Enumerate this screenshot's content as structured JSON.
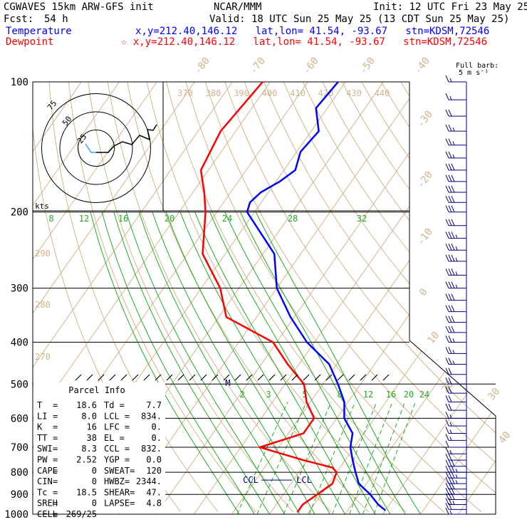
{
  "header": {
    "left1": "CGWAVES 15km ARW-GFS init",
    "center1": "NCAR/MMM",
    "right1": "Init: 12 UTC Fri 23 May 25",
    "fcst_label": "Fcst:",
    "fcst_value": "54 h",
    "valid": "Valid: 18 UTC Sun 25 May 25 (13 CDT Sun 25 May 25)",
    "temp_label": "Temperature",
    "temp_loc": "x,y=212.40,146.12   lat,lon= 41.54, -93.67   stn=KDSM,72546",
    "dew_label": "Dewpoint",
    "dew_loc": "☆ x,y=212.40,146.12   lat,lon= 41.54, -93.67   stn=KDSM,72546",
    "barb_note_1": "Full barb:",
    "barb_note_2": "5 m s⁻¹"
  },
  "colors": {
    "temperature": "#0000ff",
    "dewpoint": "#ff0000",
    "isotherm": "#d2b48c",
    "dry_adiabat": "#d2b48c",
    "moist_adiabat": "#22aa22",
    "mixing_ratio": "#22aa22",
    "isobar": "#000000",
    "barb": "#000080",
    "hodo_trace": "#000000",
    "hodo_low": "#33aadd"
  },
  "chart_data": {
    "type": "line",
    "diagram": "skew-T log-p",
    "y_axis": {
      "pressure_labels": [
        "100",
        "200",
        "300",
        "400",
        "500",
        "600",
        "700",
        "800",
        "900",
        "1000"
      ],
      "pressure_values": [
        100,
        200,
        300,
        400,
        500,
        600,
        700,
        800,
        900,
        1000
      ],
      "scale": "log"
    },
    "isotherm_labels": [
      "-80",
      "-70",
      "-60",
      "-50",
      "-40",
      "-30",
      "-20",
      "-10",
      "0",
      "10",
      "20",
      "30",
      "40"
    ],
    "isotherm_values": [
      -80,
      -70,
      -60,
      -50,
      -40,
      -30,
      -20,
      -10,
      0,
      10,
      20,
      30,
      40
    ],
    "theta_labels_top": [
      "370",
      "380",
      "390",
      "400",
      "410",
      "420",
      "430",
      "440"
    ],
    "theta_labels_left": [
      "290",
      "280",
      "270"
    ],
    "moist_labels_200": [
      "8",
      "12",
      "16",
      "20",
      "24",
      "28",
      "32"
    ],
    "mixing_ratio_labels": [
      "2",
      "3",
      "5",
      "8",
      "12",
      "16",
      "20",
      "24"
    ],
    "series": [
      {
        "name": "Temperature",
        "points": [
          [
            100,
            -62
          ],
          [
            115,
            -63
          ],
          [
            130,
            -58
          ],
          [
            145,
            -59
          ],
          [
            160,
            -57
          ],
          [
            170,
            -59
          ],
          [
            180,
            -62
          ],
          [
            190,
            -63
          ],
          [
            200,
            -62
          ],
          [
            250,
            -47
          ],
          [
            300,
            -40
          ],
          [
            350,
            -31
          ],
          [
            400,
            -22
          ],
          [
            450,
            -12
          ],
          [
            500,
            -6
          ],
          [
            550,
            -1
          ],
          [
            600,
            2
          ],
          [
            650,
            7
          ],
          [
            700,
            9
          ],
          [
            750,
            12
          ],
          [
            800,
            15
          ],
          [
            850,
            18
          ],
          [
            900,
            23
          ],
          [
            950,
            27
          ],
          [
            980,
            30
          ]
        ]
      },
      {
        "name": "Dewpoint",
        "points": [
          [
            100,
            -82
          ],
          [
            130,
            -84
          ],
          [
            160,
            -82
          ],
          [
            180,
            -77
          ],
          [
            200,
            -73
          ],
          [
            250,
            -66
          ],
          [
            300,
            -55
          ],
          [
            350,
            -48
          ],
          [
            400,
            -31
          ],
          [
            450,
            -23
          ],
          [
            500,
            -15
          ],
          [
            550,
            -11
          ],
          [
            600,
            -6
          ],
          [
            650,
            -6
          ],
          [
            700,
            -15
          ],
          [
            750,
            -1
          ],
          [
            780,
            8
          ],
          [
            800,
            10
          ],
          [
            850,
            11
          ],
          [
            900,
            9
          ],
          [
            950,
            7
          ],
          [
            990,
            7
          ]
        ]
      }
    ],
    "wind_barbs": {
      "pressures": [
        100,
        110,
        120,
        130,
        140,
        150,
        160,
        170,
        180,
        190,
        200,
        215,
        230,
        245,
        260,
        280,
        300,
        320,
        340,
        360,
        380,
        400,
        425,
        450,
        475,
        500,
        525,
        550,
        575,
        600,
        625,
        650,
        675,
        700,
        725,
        750,
        775,
        800,
        825,
        850,
        875,
        900,
        925,
        950,
        975,
        1000
      ],
      "speeds_kt": [
        15,
        15,
        20,
        25,
        25,
        25,
        30,
        30,
        30,
        30,
        30,
        30,
        35,
        35,
        35,
        35,
        35,
        30,
        30,
        30,
        30,
        25,
        25,
        25,
        20,
        20,
        20,
        20,
        20,
        15,
        15,
        15,
        15,
        10,
        15,
        20,
        30,
        35,
        35,
        35,
        30,
        30,
        30,
        25,
        20,
        15
      ]
    },
    "hodograph": {
      "ring_labels": [
        "25",
        "50",
        "75"
      ],
      "speed_unit": "kts"
    },
    "parcel_markers": {
      "ccl": "CCL",
      "lcl": "LCL",
      "m": "M"
    }
  },
  "parcel_info": {
    "title": "Parcel Info",
    "rows": [
      [
        "T",
        "=",
        "18.6",
        "Td =",
        "7.7"
      ],
      [
        "LI",
        "=",
        "8.0",
        "LCL =",
        "834."
      ],
      [
        "K",
        "=",
        "16",
        "LFC =",
        "0."
      ],
      [
        "TT",
        "=",
        "38",
        "EL =",
        "0."
      ],
      [
        "SWI",
        "=",
        "8.3",
        "CCL =",
        "832."
      ],
      [
        "PW",
        "=",
        "2.52",
        "YGP =",
        "0.0"
      ],
      [
        "CAPE",
        "=",
        "0",
        "SWEAT=",
        "120"
      ],
      [
        "CIN",
        "=",
        "0",
        "HWBZ=",
        "2344."
      ],
      [
        "Tc",
        "=",
        "18.5",
        "SHEAR=",
        "47."
      ],
      [
        "SREH",
        "=",
        "0",
        "LAPSE=",
        "4.8"
      ],
      [
        "CELL",
        "=",
        "269/25",
        "",
        ""
      ]
    ]
  }
}
